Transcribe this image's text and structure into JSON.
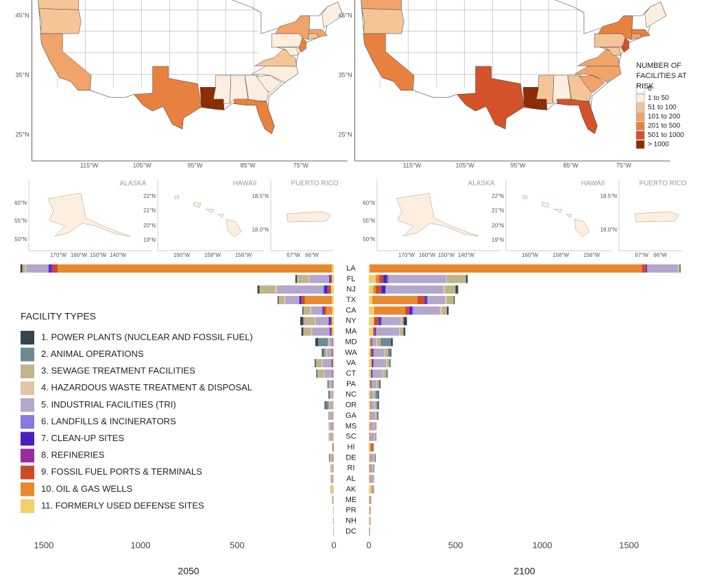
{
  "maps": [
    {
      "lat_labels": [
        "45°N",
        "35°N",
        "25°N"
      ],
      "lon_labels": [
        "115°W",
        "105°W",
        "95°W",
        "85°W",
        "75°W"
      ],
      "insets": [
        {
          "title": "ALASKA",
          "lat_labels": [
            "60°N",
            "55°N",
            "50°N"
          ],
          "lon_labels": [
            "170°W",
            "160°W",
            "150°W",
            "140°W"
          ]
        },
        {
          "title": "HAWAII",
          "lat_labels": [
            "22°N",
            "21°N",
            "20°N",
            "19°N"
          ],
          "lon_labels": [
            "160°W",
            "158°W",
            "156°W"
          ]
        },
        {
          "title": "PUERTO RICO",
          "lat_labels": [
            "18.5°N",
            "18.0°N"
          ],
          "lon_labels": [
            "67°W",
            "66°W"
          ]
        }
      ]
    },
    {
      "lat_labels": [
        "45°N",
        "35°N",
        "25°N"
      ],
      "lon_labels": [
        "115°W",
        "105°W",
        "95°W",
        "85°W",
        "75°W"
      ],
      "insets": [
        {
          "title": "ALASKA",
          "lat_labels": [
            "60°N",
            "55°N",
            "50°N"
          ],
          "lon_labels": [
            "170°W",
            "160°W",
            "150°W",
            "140°W"
          ]
        },
        {
          "title": "HAWAII",
          "lat_labels": [
            "22°N",
            "21°N",
            "20°N",
            "19°N"
          ],
          "lon_labels": [
            "160°W",
            "158°W",
            "156°W"
          ]
        },
        {
          "title": "PUERTO RICO",
          "lat_labels": [
            "18.5°N",
            "18.0°N"
          ],
          "lon_labels": [
            "67°W",
            "66°W"
          ]
        }
      ]
    }
  ],
  "map_legend": {
    "title": "NUMBER OF FACILITIES AT RISK",
    "items": [
      {
        "label": "0",
        "color": "#ffffff"
      },
      {
        "label": "1 to 50",
        "color": "#fdeee0"
      },
      {
        "label": "51 to 100",
        "color": "#f5c598"
      },
      {
        "label": "101 to 200",
        "color": "#f0a46a"
      },
      {
        "label": "201 to 500",
        "color": "#e8813f"
      },
      {
        "label": "501 to 1000",
        "color": "#d4522a"
      },
      {
        "label": "> 1000",
        "color": "#8c2d04"
      }
    ]
  },
  "chart_data": {
    "type": "bar",
    "orientation": "horizontal",
    "stacked": true,
    "categories": [
      "LA",
      "FL",
      "NJ",
      "TX",
      "CA",
      "NY",
      "MA",
      "MD",
      "WA",
      "VA",
      "CT",
      "PA",
      "NC",
      "OR",
      "GA",
      "MS",
      "SC",
      "HI",
      "DE",
      "RI",
      "AL",
      "AK",
      "ME",
      "PR",
      "NH",
      "DC"
    ],
    "legend_title": "FACILITY TYPES",
    "series": [
      {
        "name": "1. POWER PLANTS (NUCLEAR AND FOSSIL FUEL)",
        "color": "#36454f"
      },
      {
        "name": "2. ANIMAL OPERATIONS",
        "color": "#6a8a94"
      },
      {
        "name": "3. SEWAGE TREATMENT FACILITIES",
        "color": "#bfb48a"
      },
      {
        "name": "4. HAZARDOUS WASTE TREATMENT & DISPOSAL",
        "color": "#e2c5a8"
      },
      {
        "name": "5. INDUSTRIAL FACILITIES (TRI)",
        "color": "#b3a7cb"
      },
      {
        "name": "6. LANDFILLS & INCINERATORS",
        "color": "#8878e0"
      },
      {
        "name": "7. CLEAN-UP SITES",
        "color": "#4b1fc2"
      },
      {
        "name": "8. REFINERIES",
        "color": "#9b2b9b"
      },
      {
        "name": "9. FOSSIL FUEL PORTS & TERMINALS",
        "color": "#cc4a2a"
      },
      {
        "name": "10. OIL & GAS WELLS",
        "color": "#e8892f"
      },
      {
        "name": "11. FORMERLY USED DEFENSE SITES",
        "color": "#f2d06b"
      }
    ],
    "panels": [
      {
        "xlabel": "2050",
        "direction": "left",
        "xlim": [
          0,
          1620
        ],
        "xticks": [
          0,
          500,
          1000,
          1500
        ],
        "values": [
          [
            10,
            8,
            10,
            5,
            5,
            15,
            10,
            15,
            5,
            5,
            5,
            3,
            3,
            5,
            0,
            0,
            0,
            0,
            3,
            0,
            0,
            0,
            0,
            0,
            0,
            0
          ],
          [
            0,
            0,
            0,
            0,
            0,
            5,
            0,
            50,
            10,
            0,
            0,
            3,
            5,
            15,
            3,
            0,
            0,
            0,
            0,
            0,
            0,
            0,
            0,
            0,
            0,
            0
          ],
          [
            15,
            60,
            80,
            30,
            35,
            55,
            40,
            5,
            10,
            30,
            35,
            5,
            5,
            5,
            5,
            5,
            5,
            0,
            5,
            5,
            3,
            3,
            3,
            0,
            2,
            2
          ],
          [
            5,
            5,
            10,
            5,
            5,
            5,
            5,
            3,
            3,
            5,
            3,
            2,
            2,
            3,
            2,
            2,
            2,
            0,
            2,
            2,
            2,
            0,
            2,
            0,
            0,
            0
          ],
          [
            113,
            100,
            240,
            70,
            55,
            65,
            90,
            15,
            25,
            45,
            40,
            15,
            10,
            15,
            15,
            15,
            15,
            0,
            10,
            8,
            10,
            3,
            3,
            2,
            2,
            2
          ],
          [
            5,
            3,
            5,
            3,
            5,
            3,
            3,
            0,
            0,
            3,
            0,
            0,
            0,
            0,
            0,
            0,
            0,
            0,
            0,
            0,
            0,
            0,
            0,
            0,
            0,
            0
          ],
          [
            10,
            5,
            15,
            8,
            5,
            8,
            5,
            3,
            2,
            3,
            3,
            2,
            0,
            0,
            0,
            0,
            0,
            0,
            0,
            0,
            0,
            0,
            0,
            0,
            0,
            0
          ],
          [
            10,
            3,
            5,
            5,
            3,
            3,
            0,
            0,
            0,
            0,
            0,
            0,
            0,
            0,
            0,
            0,
            0,
            0,
            0,
            0,
            0,
            0,
            0,
            0,
            0,
            0
          ],
          [
            25,
            5,
            15,
            15,
            10,
            5,
            5,
            0,
            2,
            3,
            0,
            0,
            0,
            0,
            0,
            2,
            0,
            5,
            2,
            0,
            0,
            0,
            0,
            0,
            0,
            0
          ],
          [
            1418,
            0,
            0,
            140,
            30,
            0,
            0,
            0,
            0,
            0,
            0,
            0,
            0,
            0,
            0,
            0,
            0,
            0,
            0,
            0,
            0,
            0,
            0,
            0,
            0,
            0
          ],
          [
            10,
            10,
            15,
            10,
            10,
            10,
            10,
            5,
            5,
            5,
            5,
            3,
            3,
            5,
            3,
            3,
            5,
            2,
            3,
            3,
            3,
            12,
            2,
            2,
            0,
            0
          ]
        ]
      },
      {
        "xlabel": "2100",
        "direction": "right",
        "xlim": [
          0,
          1810
        ],
        "xticks": [
          0,
          500,
          1000,
          1500
        ],
        "values": [
          [
            5,
            10,
            15,
            5,
            10,
            20,
            10,
            10,
            5,
            5,
            5,
            5,
            5,
            5,
            3,
            2,
            2,
            0,
            3,
            2,
            0,
            0,
            0,
            0,
            0,
            0
          ],
          [
            0,
            0,
            0,
            0,
            0,
            0,
            0,
            60,
            15,
            0,
            0,
            5,
            15,
            10,
            5,
            0,
            0,
            0,
            0,
            0,
            0,
            0,
            0,
            0,
            0,
            0
          ],
          [
            5,
            110,
            60,
            40,
            30,
            10,
            20,
            20,
            15,
            15,
            20,
            10,
            10,
            10,
            8,
            5,
            5,
            3,
            5,
            5,
            5,
            3,
            3,
            2,
            3,
            2
          ],
          [
            5,
            5,
            10,
            10,
            10,
            5,
            5,
            5,
            5,
            5,
            5,
            3,
            3,
            3,
            3,
            2,
            2,
            0,
            2,
            2,
            2,
            0,
            2,
            0,
            2,
            0
          ],
          [
            178,
            330,
            330,
            100,
            150,
            110,
            130,
            25,
            60,
            70,
            55,
            30,
            15,
            20,
            25,
            25,
            25,
            5,
            20,
            15,
            18,
            10,
            5,
            6,
            4,
            4
          ],
          [
            0,
            10,
            5,
            5,
            10,
            5,
            5,
            0,
            5,
            5,
            3,
            0,
            0,
            0,
            0,
            0,
            0,
            0,
            0,
            0,
            0,
            0,
            0,
            0,
            0,
            0
          ],
          [
            5,
            20,
            20,
            10,
            15,
            10,
            5,
            3,
            5,
            5,
            5,
            3,
            0,
            0,
            0,
            0,
            0,
            0,
            0,
            0,
            0,
            0,
            0,
            0,
            0,
            0
          ],
          [
            5,
            5,
            5,
            5,
            5,
            5,
            0,
            0,
            0,
            0,
            0,
            0,
            0,
            0,
            0,
            0,
            0,
            0,
            0,
            0,
            0,
            0,
            0,
            0,
            0,
            0
          ],
          [
            20,
            20,
            30,
            40,
            20,
            25,
            10,
            5,
            10,
            5,
            3,
            3,
            3,
            3,
            3,
            3,
            3,
            8,
            3,
            3,
            2,
            3,
            2,
            0,
            0,
            0
          ],
          [
            1569,
            20,
            15,
            260,
            180,
            0,
            0,
            0,
            0,
            0,
            0,
            0,
            0,
            0,
            0,
            0,
            0,
            10,
            0,
            0,
            0,
            0,
            0,
            0,
            0,
            0
          ],
          [
            5,
            40,
            25,
            20,
            30,
            30,
            25,
            10,
            10,
            15,
            12,
            8,
            8,
            8,
            8,
            6,
            6,
            6,
            7,
            5,
            5,
            16,
            4,
            4,
            3,
            2
          ]
        ]
      }
    ]
  }
}
